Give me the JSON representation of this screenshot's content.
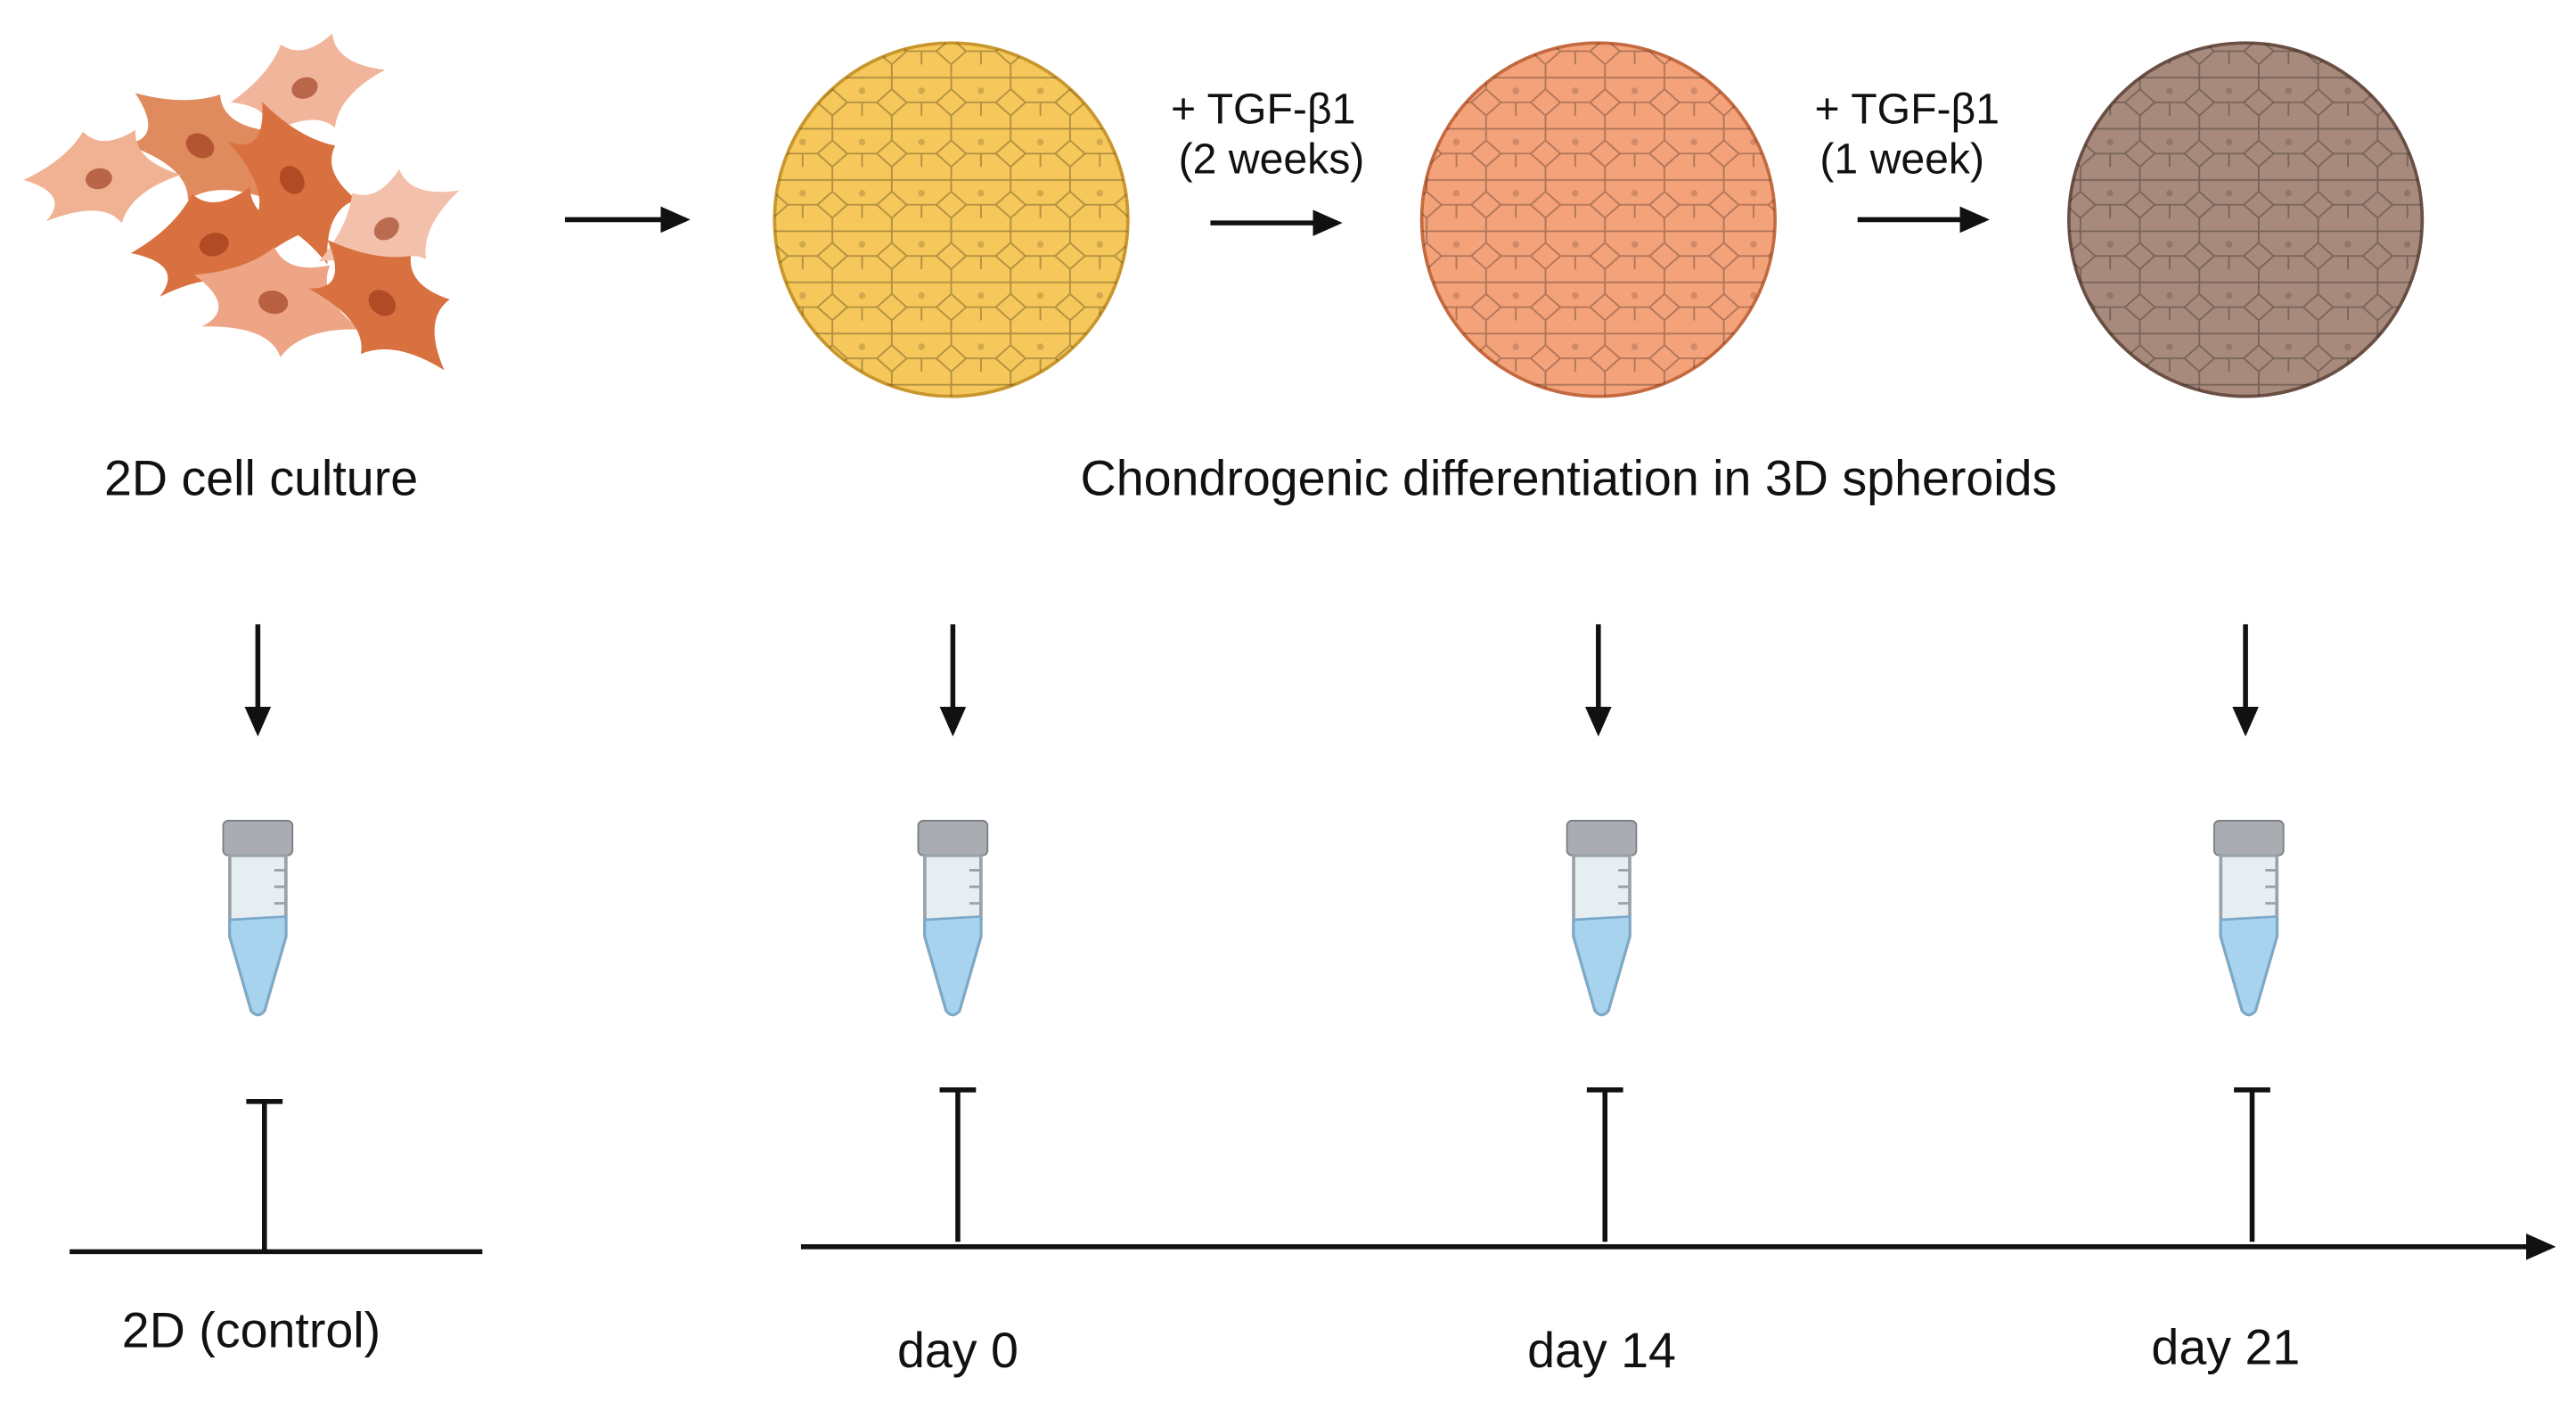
{
  "stages": {
    "culture_2d": "2D cell culture",
    "spheroids": "Chondrogenic differentiation in 3D spheroids"
  },
  "treatments": [
    {
      "agent": "+ TGF-β1",
      "duration": "(2 weeks)"
    },
    {
      "agent": "+ TGF-β1",
      "duration": "(1 week)"
    }
  ],
  "timepoints": [
    "2D (control)",
    "day 0",
    "day 14",
    "day 21"
  ]
}
